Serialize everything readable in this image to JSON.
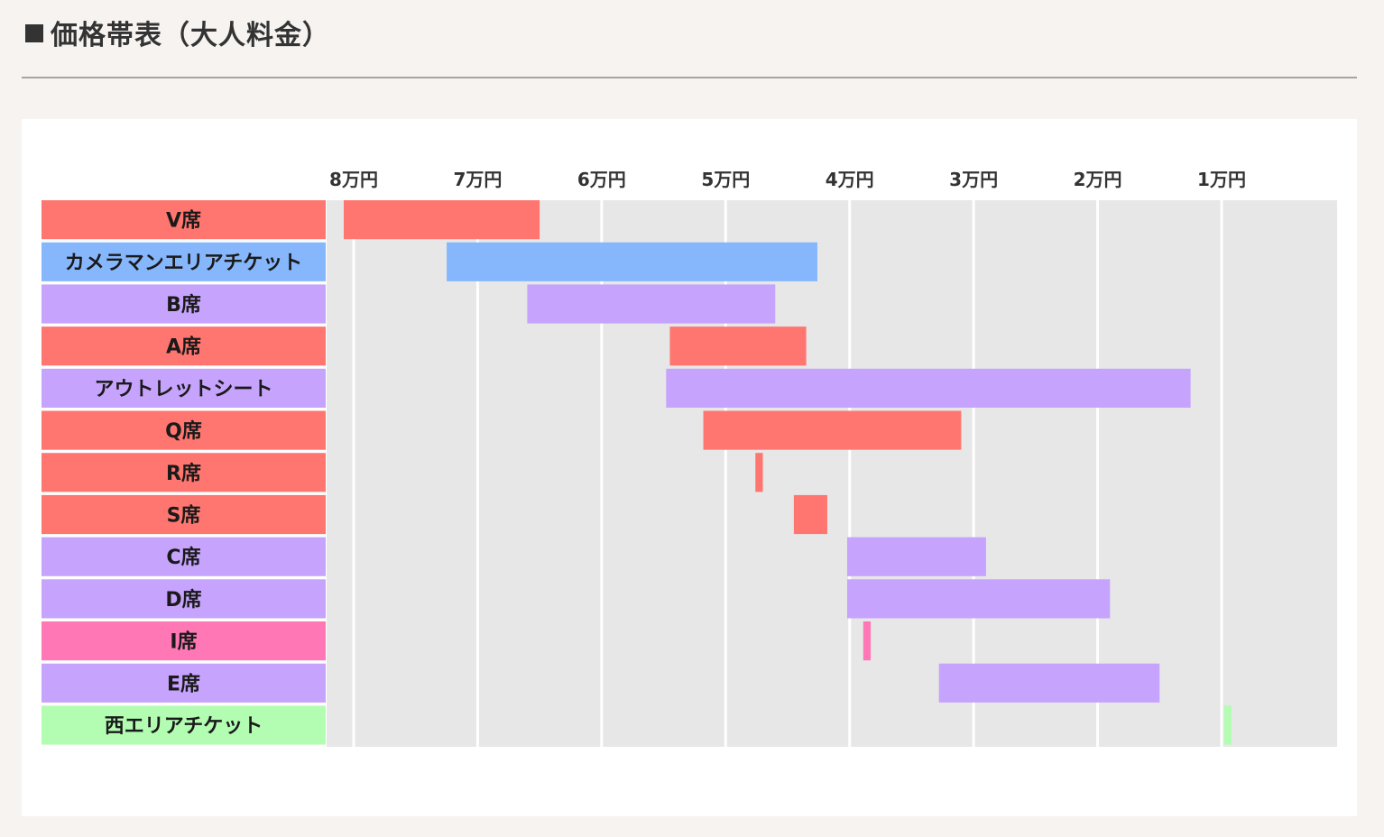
{
  "page": {
    "title": "■価格帯表（大人料金）",
    "title_text": "価格帯表（大人料金）"
  },
  "chart_data": {
    "type": "bar",
    "orientation": "horizontal-range",
    "title": "価格帯表（大人料金）",
    "xlabel": "",
    "ylabel": "",
    "x_axis": {
      "reversed": true,
      "unit": "円",
      "ticks": [
        80000,
        70000,
        60000,
        50000,
        40000,
        30000,
        20000,
        10000
      ],
      "tick_labels": [
        "8万円",
        "7万円",
        "6万円",
        "5万円",
        "4万円",
        "3万円",
        "2万円",
        "1万円"
      ]
    },
    "xlim": [
      82000,
      0
    ],
    "grid": true,
    "categories": [
      "V席",
      "カメラマンエリアチケット",
      "B席",
      "A席",
      "アウトレットシート",
      "Q席",
      "R席",
      "S席",
      "C席",
      "D席",
      "I席",
      "E席",
      "西エリアチケット"
    ],
    "series": [
      {
        "name": "V席",
        "min": 65000,
        "max": 80800,
        "color": "#ff7670"
      },
      {
        "name": "カメラマンエリアチケット",
        "min": 42600,
        "max": 72500,
        "color": "#86b7fd"
      },
      {
        "name": "B席",
        "min": 46000,
        "max": 66000,
        "color": "#c6a3fd"
      },
      {
        "name": "A席",
        "min": 43500,
        "max": 54500,
        "color": "#ff7670"
      },
      {
        "name": "アウトレットシート",
        "min": 12500,
        "max": 54800,
        "color": "#c6a3fd"
      },
      {
        "name": "Q席",
        "min": 31000,
        "max": 51800,
        "color": "#ff7670"
      },
      {
        "name": "R席",
        "min": 47000,
        "max": 47600,
        "color": "#ff7670"
      },
      {
        "name": "S席",
        "min": 41800,
        "max": 44500,
        "color": "#ff7670"
      },
      {
        "name": "C席",
        "min": 29000,
        "max": 40200,
        "color": "#c6a3fd"
      },
      {
        "name": "D席",
        "min": 19000,
        "max": 40200,
        "color": "#c6a3fd"
      },
      {
        "name": "I席",
        "min": 38300,
        "max": 38900,
        "color": "#ff77b4"
      },
      {
        "name": "E席",
        "min": 15000,
        "max": 32800,
        "color": "#c6a3fd"
      },
      {
        "name": "西エリアチケット",
        "min": 9200,
        "max": 9800,
        "color": "#b3fdb3"
      }
    ]
  },
  "colors": {
    "plot_background": "#e7e7e7",
    "grid": "#ffffff"
  }
}
